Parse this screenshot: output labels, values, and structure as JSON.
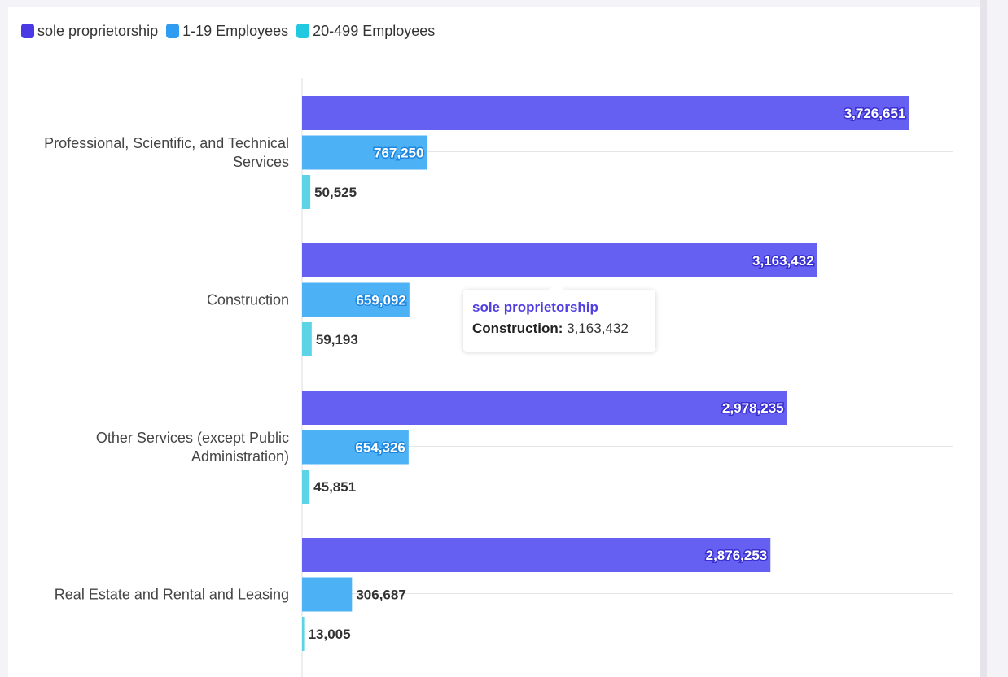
{
  "legend": [
    {
      "label": "sole proprietorship",
      "color": "#4a3ae6"
    },
    {
      "label": "1-19 Employees",
      "color": "#2e9cf0"
    },
    {
      "label": "20-499 Employees",
      "color": "#20c8e0"
    }
  ],
  "chart_data": {
    "type": "bar",
    "orientation": "horizontal",
    "xlim": [
      0,
      4000000
    ],
    "grid": true,
    "legend_position": "top-left",
    "categories": [
      [
        "Professional, Scientific, and Technical",
        "Services"
      ],
      [
        "Construction"
      ],
      [
        "Other Services (except Public",
        "Administration)"
      ],
      [
        "Real Estate and Rental and Leasing"
      ]
    ],
    "series": [
      {
        "name": "sole proprietorship",
        "color": "#6660f2",
        "values": [
          3726651,
          3163432,
          2978235,
          2876253
        ],
        "labels": [
          "3,726,651",
          "3,163,432",
          "2,978,235",
          "2,876,253"
        ]
      },
      {
        "name": "1-19 Employees",
        "color": "#4db2f5",
        "values": [
          767250,
          659092,
          654326,
          306687
        ],
        "labels": [
          "767,250",
          "659,092",
          "654,326",
          "306,687"
        ]
      },
      {
        "name": "20-499 Employees",
        "color": "#5dd4e6",
        "values": [
          50525,
          59193,
          45851,
          13005
        ],
        "labels": [
          "50,525",
          "59,193",
          "45,851",
          "13,005"
        ]
      }
    ]
  },
  "tooltip": {
    "series": "sole proprietorship",
    "category": "Construction:",
    "value": "3,163,432"
  }
}
